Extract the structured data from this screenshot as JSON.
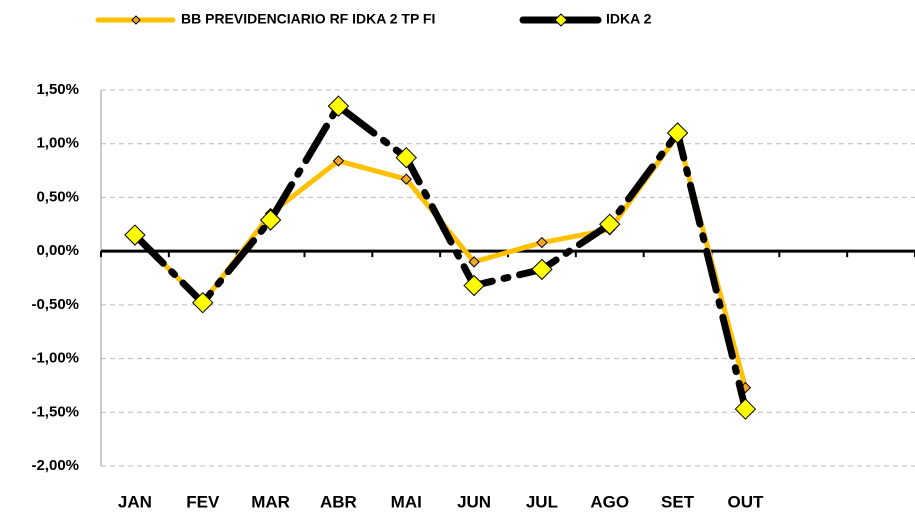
{
  "chart_data": {
    "type": "line",
    "categories": [
      "JAN",
      "FEV",
      "MAR",
      "ABR",
      "MAI",
      "JUN",
      "JUL",
      "AGO",
      "SET",
      "OUT",
      null,
      null
    ],
    "series": [
      {
        "name": "BB PREVIDENCIARIO RF IDKA 2 TP FI",
        "color": "#ffc000",
        "marker_color": "#f5a623",
        "values": [
          0.15,
          -0.48,
          0.35,
          0.84,
          0.67,
          -0.1,
          0.08,
          0.2,
          1.08,
          -1.27,
          null,
          null
        ]
      },
      {
        "name": "IDKA 2",
        "color": "#000000",
        "marker_color": "#ffff00",
        "values": [
          0.15,
          -0.48,
          0.29,
          1.35,
          0.87,
          -0.32,
          -0.17,
          0.25,
          1.1,
          -1.47,
          null,
          null
        ]
      }
    ],
    "ylim": [
      -2.0,
      1.5
    ],
    "yticks": [
      {
        "value": -2.0,
        "label": "-2,00%"
      },
      {
        "value": -1.5,
        "label": "-1,50%"
      },
      {
        "value": -1.0,
        "label": "-1,00%"
      },
      {
        "value": -0.5,
        "label": "-0,50%"
      },
      {
        "value": 0,
        "label": "0,00%"
      },
      {
        "value": 0.5,
        "label": "0,50%"
      },
      {
        "value": 1.0,
        "label": "1,00%"
      },
      {
        "value": 1.5,
        "label": "1,50%"
      }
    ],
    "grid": true,
    "legend": "top"
  }
}
